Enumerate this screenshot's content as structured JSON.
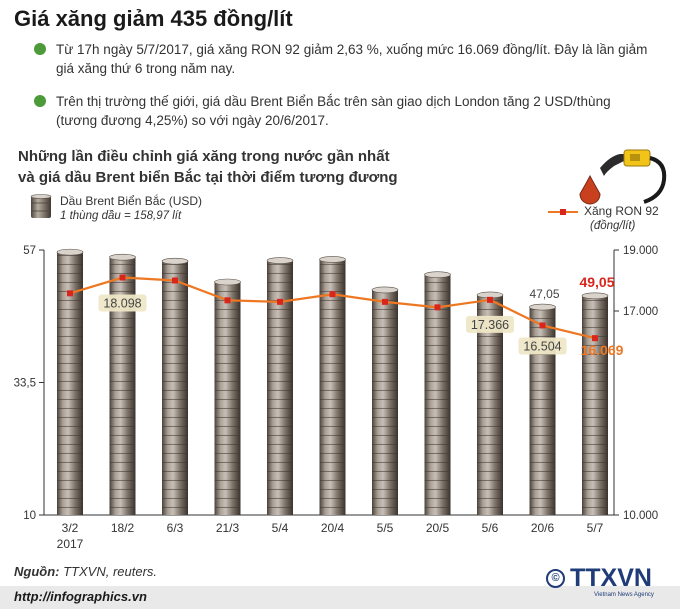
{
  "title": "Giá xăng giảm 435 đồng/lít",
  "bullets": [
    "Từ 17h ngày 5/7/2017, giá xăng RON 92 giảm 2,63 %, xuống mức 16.069 đồng/lít. Đây là lần giảm giá xăng thứ 6 trong năm nay.",
    "Trên thị trường thế giới, giá dầu Brent Biển Bắc trên sàn giao dịch London tăng 2 USD/thùng (tương đương 4,25%) so với ngày 20/6/2017."
  ],
  "subtitle": {
    "line1": "Những lần điều chỉnh giá xăng trong nước gần nhất",
    "line2": "và giá dầu Brent biển Bắc tại thời điểm tương đương"
  },
  "legend": {
    "brent_label": "Dầu Brent Biển Bắc (USD)",
    "brent_note": "1 thùng dầu = 158,97 lít",
    "ron_label": "Xăng RON 92",
    "ron_unit": "(đồng/lít)"
  },
  "chart_data": {
    "type": "bar",
    "categories": [
      "3/2",
      "18/2",
      "6/3",
      "21/3",
      "5/4",
      "20/4",
      "5/5",
      "20/5",
      "5/6",
      "20/6",
      "5/7"
    ],
    "category_note": "2017",
    "left_axis": {
      "ticks": [
        "57",
        "33,5",
        "10"
      ],
      "ylim": [
        10,
        57
      ]
    },
    "right_axis": {
      "ticks": [
        "19.000",
        "17.000",
        "10.000"
      ]
    },
    "series": [
      {
        "name": "Dầu Brent Biển Bắc (USD)",
        "axis": "left",
        "type": "bar",
        "values": [
          56.8,
          55.9,
          55.2,
          51.5,
          55.3,
          55.5,
          50.1,
          52.8,
          49.2,
          47.05,
          49.05
        ]
      },
      {
        "name": "Xăng RON 92",
        "axis": "right",
        "type": "line",
        "values": [
          17580,
          18098,
          18000,
          17350,
          17300,
          17550,
          17300,
          17120,
          17366,
          16504,
          16069
        ]
      }
    ],
    "bar_labels": {
      "9": "47,05",
      "10": "49,05"
    },
    "line_labels": {
      "1": "18.098",
      "8": "17.366",
      "9": "16.504",
      "10": "16.069"
    },
    "grid": false,
    "legend_position": "top"
  },
  "footer": {
    "source_label": "Nguồn:",
    "source_value": "TTXVN, reuters.",
    "url": "http://infographics.vn",
    "logo_text": "TTXVN",
    "logo_agency": "Vietnam News Agency",
    "copyright_symbol": "©"
  },
  "colors": {
    "bullet": "#4d9a3a",
    "line": "#ee7722",
    "marker": "#d9261c",
    "highlight": "#d9261c",
    "barrel": "#8a7e72",
    "label_bg": "#efe7c7",
    "logo": "#1f3b78"
  }
}
